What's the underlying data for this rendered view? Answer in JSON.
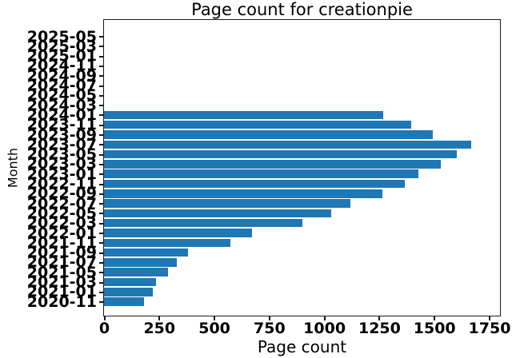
{
  "chart_data": {
    "type": "bar",
    "orientation": "horizontal",
    "title": "Page count for creationpie",
    "xlabel": "Page count",
    "ylabel": "Month",
    "bar_color": "#1f77b4",
    "axis_color": "#1a1a1a",
    "grid": false,
    "legend": null,
    "xlim": [
      0,
      1800
    ],
    "x_ticks": [
      0,
      250,
      500,
      750,
      1000,
      1250,
      1500,
      1750
    ],
    "categories_top_to_bottom": [
      "2025-05",
      "2025-03",
      "2025-01",
      "2024-11",
      "2024-09",
      "2024-07",
      "2024-05",
      "2024-03",
      "2024-01",
      "2023-11",
      "2023-09",
      "2023-07",
      "2023-05",
      "2023-03",
      "2023-01",
      "2022-11",
      "2022-09",
      "2022-07",
      "2022-05",
      "2022-03",
      "2022-01",
      "2021-11",
      "2021-09",
      "2021-07",
      "2021-05",
      "2021-03",
      "2021-01",
      "2020-11"
    ],
    "values_top_to_bottom": [
      0,
      0,
      0,
      0,
      0,
      0,
      0,
      0,
      1270,
      1397,
      1492,
      1668,
      1603,
      1530,
      1430,
      1367,
      1264,
      1121,
      1034,
      900,
      674,
      573,
      383,
      329,
      289,
      235,
      223,
      183
    ]
  }
}
